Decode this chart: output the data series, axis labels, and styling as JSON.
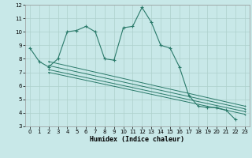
{
  "title": "",
  "xlabel": "Humidex (Indice chaleur)",
  "bg_color": "#c8e8e8",
  "grid_color": "#aed0cc",
  "line_color": "#2a7a6a",
  "xlim": [
    -0.5,
    23.5
  ],
  "ylim": [
    3,
    12
  ],
  "xticks": [
    0,
    1,
    2,
    3,
    4,
    5,
    6,
    7,
    8,
    9,
    10,
    11,
    12,
    13,
    14,
    15,
    16,
    17,
    18,
    19,
    20,
    21,
    22,
    23
  ],
  "yticks": [
    3,
    4,
    5,
    6,
    7,
    8,
    9,
    10,
    11,
    12
  ],
  "line1_x": [
    0,
    1,
    2,
    3,
    4,
    5,
    6,
    7,
    8,
    9,
    10,
    11,
    12,
    13,
    14,
    15,
    16,
    17,
    18,
    19,
    20,
    21,
    22
  ],
  "line1_y": [
    8.8,
    7.8,
    7.4,
    8.0,
    10.0,
    10.1,
    10.4,
    10.0,
    8.0,
    7.9,
    10.3,
    10.4,
    11.8,
    10.7,
    9.0,
    8.8,
    7.4,
    5.3,
    4.5,
    4.4,
    4.4,
    4.2,
    3.5
  ],
  "trend_lines": [
    {
      "x": [
        2,
        23
      ],
      "y": [
        7.8,
        4.5
      ]
    },
    {
      "x": [
        2,
        23
      ],
      "y": [
        7.5,
        4.3
      ]
    },
    {
      "x": [
        2,
        23
      ],
      "y": [
        7.2,
        4.1
      ]
    },
    {
      "x": [
        2,
        23
      ],
      "y": [
        7.0,
        3.9
      ]
    }
  ],
  "xlabel_fontsize": 6,
  "tick_fontsize": 5
}
